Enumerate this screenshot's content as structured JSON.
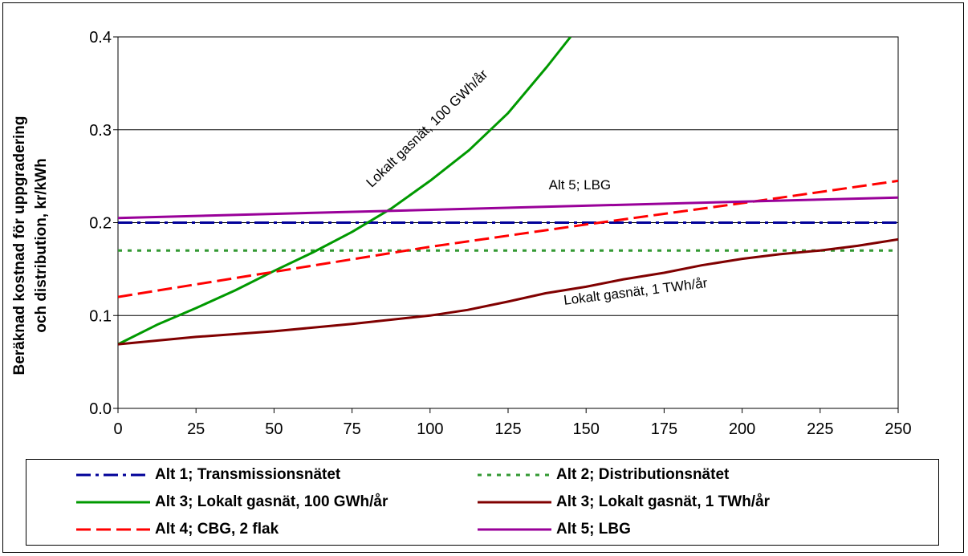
{
  "chart_data": {
    "type": "line",
    "ylabel_lines": [
      "Beräknad kostnad för uppgradering",
      "och distribution, kr/kWh"
    ],
    "xlim": [
      0,
      250
    ],
    "ylim": [
      0,
      0.4
    ],
    "x_ticks": [
      "0",
      "25",
      "50",
      "75",
      "100",
      "125",
      "150",
      "175",
      "200",
      "225",
      "250"
    ],
    "y_ticks": [
      "0.0",
      "0.1",
      "0.2",
      "0.3",
      "0.4"
    ],
    "grid": "horizontal",
    "legend_position": "bottom",
    "series": [
      {
        "name": "Alt 1; Transmissionsnätet",
        "color": "#000099",
        "dash": "dashdot",
        "x": [
          0,
          250
        ],
        "y": [
          0.2,
          0.2
        ]
      },
      {
        "name": "Alt 2; Distributionsnätet",
        "color": "#339933",
        "dash": "dotted",
        "x": [
          0,
          250
        ],
        "y": [
          0.17,
          0.17
        ]
      },
      {
        "name": "Alt 3; Lokalt gasnät, 100 GWh/år",
        "color": "#009900",
        "dash": "solid",
        "x": [
          0,
          12.5,
          25,
          37.5,
          50,
          62.5,
          75,
          87.5,
          100,
          112.5,
          125,
          137.5,
          145
        ],
        "y": [
          0.069,
          0.09,
          0.108,
          0.127,
          0.148,
          0.168,
          0.19,
          0.215,
          0.245,
          0.278,
          0.318,
          0.368,
          0.4
        ]
      },
      {
        "name": "Alt 3; Lokalt gasnät, 1 TWh/år",
        "color": "#800000",
        "dash": "solid",
        "x": [
          0,
          25,
          50,
          75,
          100,
          112,
          125,
          137,
          150,
          162,
          175,
          187,
          200,
          212,
          225,
          237,
          250
        ],
        "y": [
          0.069,
          0.077,
          0.083,
          0.091,
          0.1,
          0.106,
          0.115,
          0.124,
          0.131,
          0.139,
          0.146,
          0.154,
          0.161,
          0.166,
          0.17,
          0.175,
          0.182
        ]
      },
      {
        "name": "Alt 4; CBG, 2 flak",
        "color": "#ff0000",
        "dash": "dashed",
        "x": [
          0,
          50,
          100,
          150,
          200,
          250
        ],
        "y": [
          0.12,
          0.147,
          0.174,
          0.198,
          0.221,
          0.245
        ]
      },
      {
        "name": "Alt 5; LBG",
        "color": "#990099",
        "dash": "solid",
        "x": [
          0,
          250
        ],
        "y": [
          0.205,
          0.227
        ]
      }
    ],
    "annotations": [
      {
        "text": "Lokalt gasnät, 100 GWh/år",
        "x": 100,
        "y": 0.298,
        "angle": -44
      },
      {
        "text": "Alt 5; LBG",
        "x": 148,
        "y": 0.236,
        "angle": 0
      },
      {
        "text": "Lokalt gasnät, 1 TWh/år",
        "x": 166,
        "y": 0.121,
        "angle": -7
      }
    ]
  }
}
